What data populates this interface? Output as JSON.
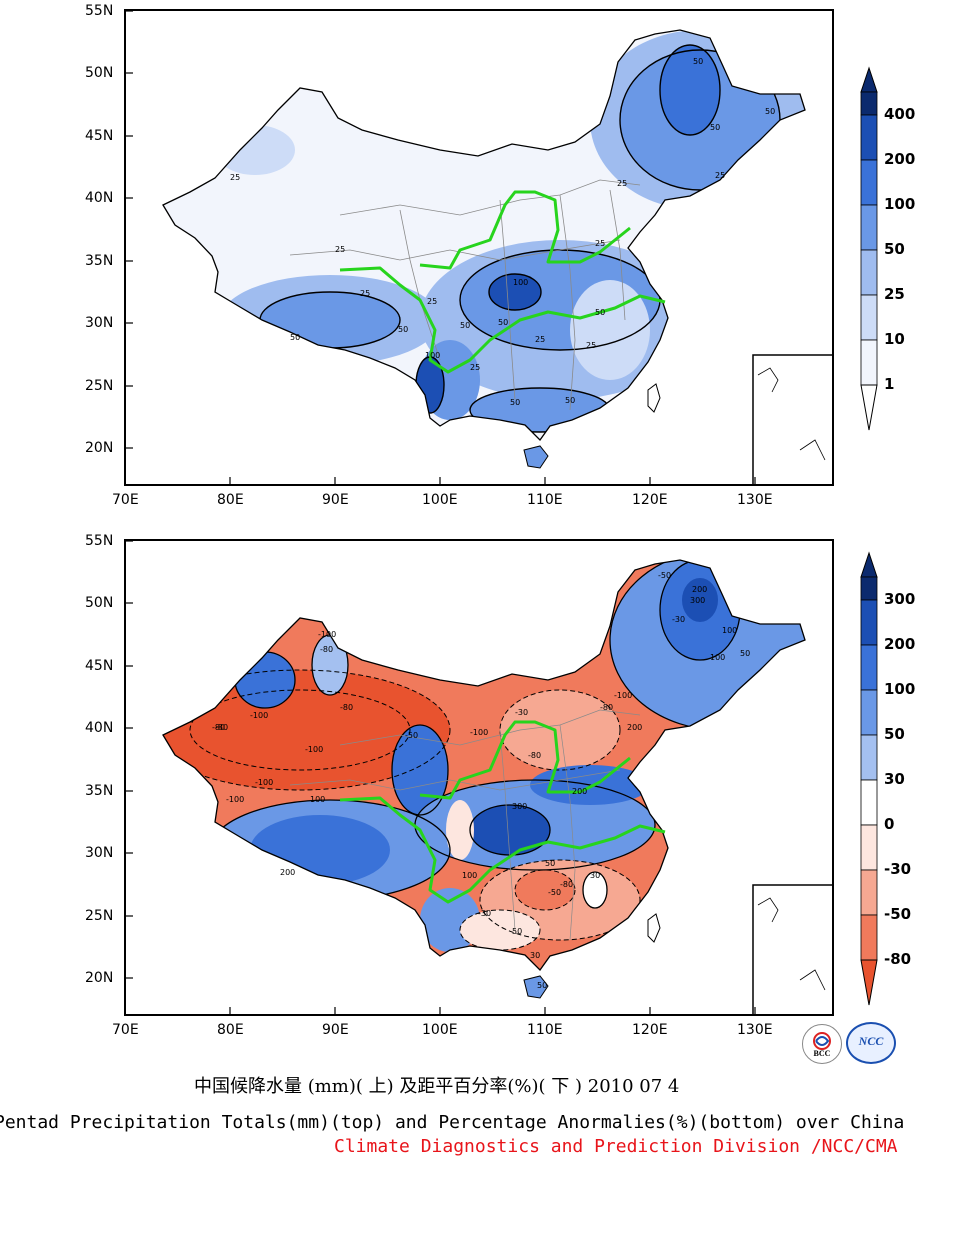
{
  "panels": [
    {
      "id": "top",
      "lat_labels": [
        "55N",
        "50N",
        "45N",
        "40N",
        "35N",
        "30N",
        "25N",
        "20N"
      ],
      "lon_labels": [
        "70E",
        "80E",
        "90E",
        "100E",
        "110E",
        "120E",
        "130E"
      ],
      "colorbar": {
        "labels": [
          "400",
          "200",
          "100",
          "50",
          "25",
          "10",
          "1"
        ],
        "colors": [
          "#0b2a6e",
          "#1c4fb4",
          "#3a72d8",
          "#6a98e6",
          "#9fbcef",
          "#cddcf7",
          "#f2f5fc",
          "#ffffff"
        ]
      },
      "contour_labels": [
        "50",
        "50",
        "50",
        "25",
        "25",
        "25",
        "25",
        "100",
        "50",
        "50",
        "25",
        "25",
        "25",
        "50",
        "25",
        "25",
        "50",
        "25",
        "50",
        "100",
        "50",
        "50"
      ]
    },
    {
      "id": "bottom",
      "lat_labels": [
        "55N",
        "50N",
        "45N",
        "40N",
        "35N",
        "30N",
        "25N",
        "20N"
      ],
      "lon_labels": [
        "70E",
        "80E",
        "90E",
        "100E",
        "110E",
        "120E",
        "130E"
      ],
      "colorbar": {
        "labels": [
          "300",
          "200",
          "100",
          "50",
          "30",
          "0",
          "-30",
          "-50",
          "-80"
        ],
        "colors": [
          "#0b2a6e",
          "#1c4fb4",
          "#3a72d8",
          "#6a98e6",
          "#a4c0f0",
          "#ffffff",
          "#fde6df",
          "#f6a892",
          "#f07a5c",
          "#e8532f"
        ]
      },
      "contour_labels": [
        "-100",
        "-80",
        "-100",
        "-80",
        "-100",
        "-50",
        "-100",
        "-80",
        "-100",
        "-30",
        "-80",
        "100",
        "200",
        "300",
        "200",
        "100",
        "50",
        "-50",
        "-80",
        "-30",
        "30",
        "50",
        "100",
        "200",
        "300",
        "100",
        "50",
        "-30",
        "-80",
        "-100",
        "-50",
        "30",
        "50",
        "200",
        "-100",
        "-80"
      ]
    }
  ],
  "captions": {
    "chinese": "中国候降水量 (mm)( 上) 及距平百分率(%)( 下 ) 2010 07 4",
    "english": "Pentad Precipitation Totals(mm)(top) and Percentage Anormalies(%)(bottom) over China",
    "division": "Climate Diagnostics and Prediction Division /NCC/CMA"
  },
  "logos": {
    "left": "BCC",
    "right": "NCC"
  },
  "colors": {
    "river": "#27d41d",
    "caption_red": "#e8141a"
  }
}
